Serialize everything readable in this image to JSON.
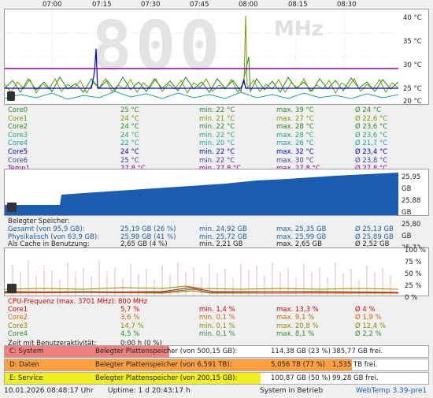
{
  "time_axis": [
    "07:00",
    "07:15",
    "07:30",
    "07:45",
    "08:00",
    "08:15",
    "08:30"
  ],
  "temp_axis": [
    "40 °C",
    "35 °C",
    "30 °C",
    "25 °C",
    "20 °C"
  ],
  "big_freq": "800",
  "big_unit": "MHz",
  "temps": [
    {
      "name": "Core0",
      "cur": "25 °C",
      "min": "min. 22 °C",
      "max": "max. 39 °C",
      "avg": "Ø 24 °C",
      "color": "#2e8b2e"
    },
    {
      "name": "Core1",
      "cur": "24 °C",
      "min": "min. 21 °C",
      "max": "max. 27 °C",
      "avg": "Ø 22,6 °C",
      "color": "#7a9a00"
    },
    {
      "name": "Core2",
      "cur": "24 °C",
      "min": "min. 22 °C",
      "max": "max. 28 °C",
      "avg": "Ø 23,6 °C",
      "color": "#228b22"
    },
    {
      "name": "Core3",
      "cur": "24 °C",
      "min": "min. 22 °C",
      "max": "max. 28 °C",
      "avg": "Ø 23,6 °C",
      "color": "#20a080"
    },
    {
      "name": "Core4",
      "cur": "22 °C",
      "min": "min. 20 °C",
      "max": "max. 26 °C",
      "avg": "Ø 21,7 °C",
      "color": "#1aa0a0"
    },
    {
      "name": "Core5",
      "cur": "24 °C",
      "min": "min. 22 °C",
      "max": "max. 32 °C",
      "avg": "Ø 23,4 °C",
      "color": "#0000cc"
    },
    {
      "name": "Core6",
      "cur": "25 °C",
      "min": "min. 22 °C",
      "max": "max. 30 °C",
      "avg": "Ø 23,8 °C",
      "color": "#4040a0"
    },
    {
      "name": "Temp1",
      "cur": "27,8 °C",
      "min": "min. 27,8 °C",
      "max": "max. 27,8 °C",
      "avg": "Ø 27,8 °C",
      "color": "#9900aa"
    }
  ],
  "mem_axis": [
    "25,95 GB",
    "25,88 GB",
    "25,80 GB",
    "25,72 GB"
  ],
  "mem_title": "Belegter Speicher:",
  "mem": [
    {
      "name": "Gesamt (von 95,9 GB):",
      "cur": "25,19 GB (26 %)",
      "min": "min. 24,92 GB",
      "max": "max. 25,35 GB",
      "avg": "Ø 25,13 GB",
      "color": "#1a5cb0"
    },
    {
      "name": "Physikalisch (von 63,9 GB):",
      "cur": "25,99 GB (41 %)",
      "min": "min. 25,72 GB",
      "max": "max. 25,99 GB",
      "avg": "Ø 25,89 GB",
      "color": "#1a5cb0"
    },
    {
      "name": "Als Cache in Benutzung:",
      "cur": "2,65 GB (4 %)",
      "min": "min. 2,21 GB",
      "max": "max. 2,65 GB",
      "avg": "Ø 2,52 GB",
      "color": "#222"
    }
  ],
  "cpu_axis": [
    "100 %",
    "75 %",
    "50 %",
    "25 %",
    "0 %"
  ],
  "cpu_freq": "CPU-Frequenz (max. 3701 MHz):",
  "cpu_freq_val": "800 MHz",
  "cpu": [
    {
      "name": "Core1",
      "cur": "5,7 %",
      "min": "min. 1,4 %",
      "max": "max. 13,3 %",
      "avg": "Ø 4 %",
      "color": "#cc0000"
    },
    {
      "name": "Core2",
      "cur": "3,6 %",
      "min": "min. 0,1 %",
      "max": "max. 9,1 %",
      "avg": "Ø 1,9 %",
      "color": "#cc6600"
    },
    {
      "name": "Core3",
      "cur": "14,7 %",
      "min": "min. 0,1 %",
      "max": "max. 20,8 %",
      "avg": "Ø 12,4 %",
      "color": "#8a8a00"
    },
    {
      "name": "Core4",
      "cur": "4,5 %",
      "min": "min. 0,1 %",
      "max": "max. 8,1 %",
      "avg": "Ø 2,2 %",
      "color": "#2e8b2e"
    }
  ],
  "idle_label": "Zeit mit Benutzeraktivität:",
  "idle_val": "0:00 h (0 %)",
  "disks": [
    {
      "name": "C: System",
      "label": "Belegter Plattenspeicher (von 500,15 GB):",
      "used": "114,38 GB (23 %)",
      "free": "385,77 GB frei.",
      "pct": 0.23,
      "color": "#f08080"
    },
    {
      "name": "D: Daten",
      "label": "Belegter Plattenspeicher (von 6,591 TB):",
      "used": "5,056 TB (77 %)",
      "free": "1,535 TB frei.",
      "pct": 0.77,
      "color": "#ffa040"
    },
    {
      "name": "E: Service",
      "label": "Belegter Plattenspeicher (von 200,15 GB):",
      "used": "100,87 GB (50 %)",
      "free": "99,28 GB frei.",
      "pct": 0.5,
      "color": "#f0f020"
    }
  ],
  "status": {
    "datetime": "10.01.2026 08:48:17 Uhr",
    "uptime": "Uptime: 1 d 20:43:17 h",
    "state": "System in Betrieb",
    "app": "WebTemp 3.39-pre1"
  }
}
